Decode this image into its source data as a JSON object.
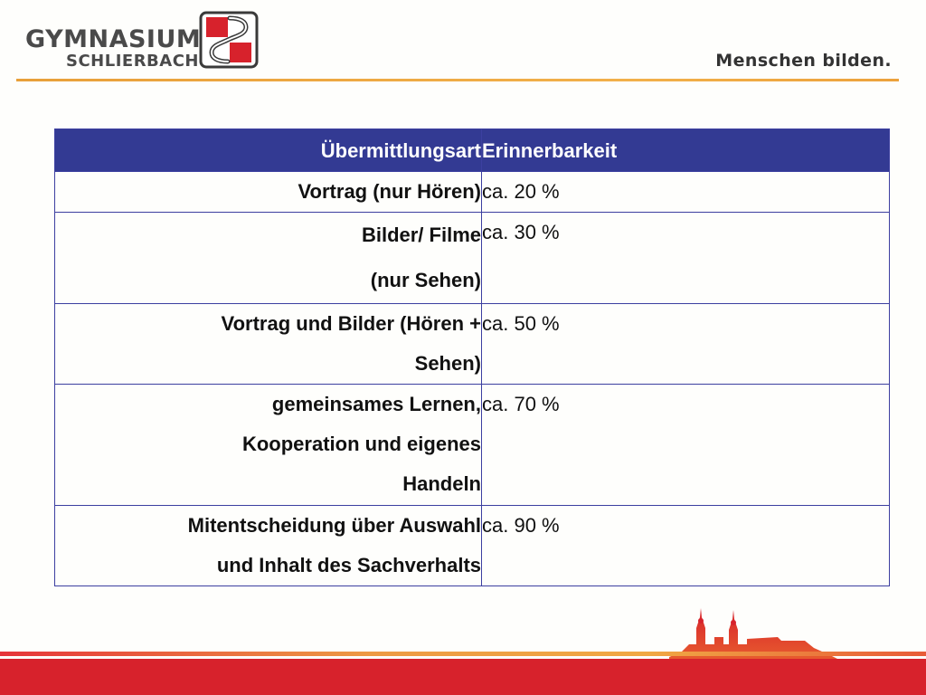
{
  "header": {
    "logo_line1": "GYMNASIUM",
    "logo_line2": "SCHLIERBACH",
    "logo_icon": "school-emblem-icon",
    "tagline": "Menschen bilden."
  },
  "table": {
    "headers": [
      "Übermittlungsart",
      "Erinnerbarkeit"
    ],
    "rows": [
      {
        "method_lines": [
          "Vortrag (nur Hören)"
        ],
        "value": "ca. 20 %"
      },
      {
        "method_lines": [
          "Bilder/ Filme",
          "(nur Sehen)"
        ],
        "value": "ca. 30 %"
      },
      {
        "method_lines": [
          "Vortrag und Bilder (Hören +",
          "Sehen)"
        ],
        "value": "ca. 50 %"
      },
      {
        "method_lines": [
          "gemeinsames Lernen,",
          "Kooperation und eigenes",
          "Handeln"
        ],
        "value": "ca. 70 %"
      },
      {
        "method_lines": [
          "Mitentscheidung über Auswahl",
          "und Inhalt des Sachverhalts"
        ],
        "value": "ca. 90 %"
      }
    ]
  },
  "footer": {
    "illustration_icon": "monastery-silhouette-icon",
    "colors": {
      "band": "#d7222c",
      "accent": "#f0a844",
      "header_bg": "#333a93"
    }
  }
}
